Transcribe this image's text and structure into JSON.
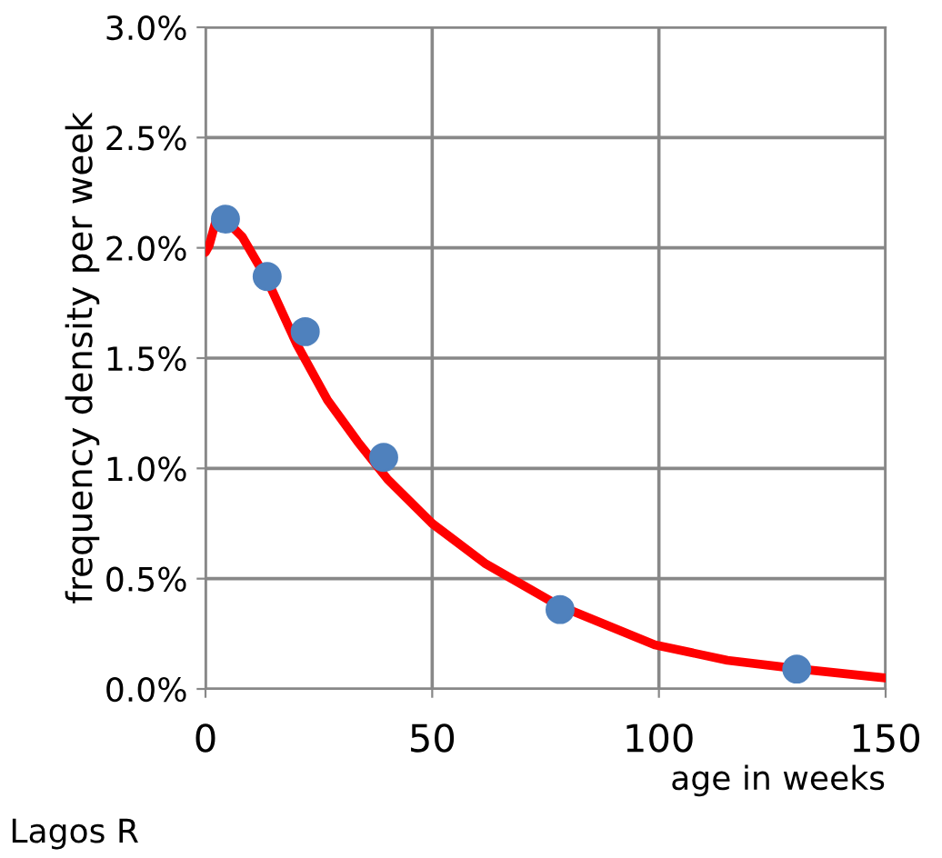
{
  "chart_data": {
    "type": "scatter",
    "xlabel": "age in weeks",
    "ylabel": "frequency density per week",
    "annotations": [
      "Lagos R"
    ],
    "series": [
      {
        "type": "line",
        "color": "#ff0000",
        "marker": "none",
        "x": [
          0,
          0.8,
          2.8,
          8.1,
          13.5,
          20.2,
          26.9,
          33.6,
          40.2,
          50,
          61.6,
          77.7,
          99.1,
          115.1,
          131.2,
          149.9
        ],
        "values": [
          1.98,
          2.01,
          2.16,
          2.05,
          1.86,
          1.56,
          1.31,
          1.12,
          0.95,
          0.75,
          0.57,
          0.38,
          0.2,
          0.13,
          0.09,
          0.05
        ]
      },
      {
        "color": "#4f81bd",
        "marker": "circle",
        "x": [
          4.4,
          13.6,
          22,
          39.3,
          78.2,
          130.4
        ],
        "values": [
          2.13,
          1.87,
          1.62,
          1.05,
          0.36,
          0.09
        ]
      }
    ],
    "xlim": [
      0,
      150
    ],
    "xticks": [
      0,
      50,
      100,
      150
    ],
    "ylim": [
      0,
      3
    ],
    "yticks": [
      {
        "value": 0,
        "label": "0.0%"
      },
      {
        "value": 0.5,
        "label": "0.5%"
      },
      {
        "value": 1,
        "label": "1.0%"
      },
      {
        "value": 1.5,
        "label": "1.5%"
      },
      {
        "value": 2,
        "label": "2.0%"
      },
      {
        "value": 2.5,
        "label": "2.5%"
      },
      {
        "value": 3,
        "label": "3.0%"
      }
    ],
    "grid": true,
    "legend": false
  }
}
